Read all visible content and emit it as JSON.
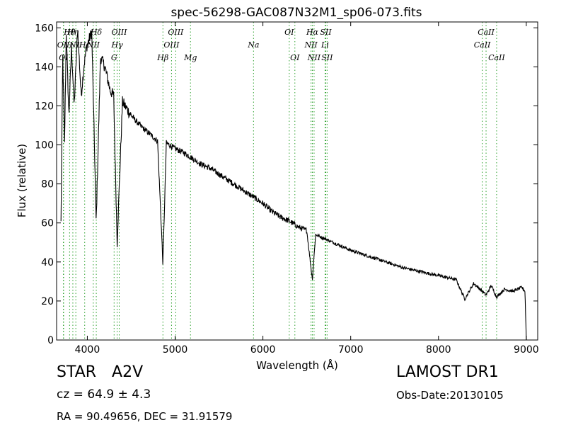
{
  "chart_data": {
    "type": "line",
    "title": "spec-56298-GAC087N32M1_sp06-073.fits",
    "xlabel": "Wavelength (Å)",
    "ylabel": "Flux (relative)",
    "xlim": [
      3650,
      9130
    ],
    "ylim": [
      0,
      163
    ],
    "xticks": [
      4000,
      5000,
      6000,
      7000,
      8000,
      9000
    ],
    "yticks": [
      0,
      20,
      40,
      60,
      80,
      100,
      120,
      140,
      160
    ],
    "grid": false,
    "line_color": "#000000",
    "marker_color": "#2ca02c",
    "continuum": [
      [
        3700,
        60
      ],
      [
        3720,
        145
      ],
      [
        3740,
        100
      ],
      [
        3760,
        158
      ],
      [
        3790,
        115
      ],
      [
        3820,
        150
      ],
      [
        3850,
        120
      ],
      [
        3890,
        160
      ],
      [
        3930,
        125
      ],
      [
        3960,
        140
      ],
      [
        3990,
        150
      ],
      [
        4050,
        158
      ],
      [
        4101,
        60
      ],
      [
        4150,
        145
      ],
      [
        4200,
        140
      ],
      [
        4260,
        128
      ],
      [
        4300,
        125
      ],
      [
        4340,
        50
      ],
      [
        4400,
        122
      ],
      [
        4500,
        115
      ],
      [
        4600,
        110
      ],
      [
        4700,
        106
      ],
      [
        4800,
        102
      ],
      [
        4861,
        39
      ],
      [
        4900,
        101
      ],
      [
        5000,
        98
      ],
      [
        5100,
        96
      ],
      [
        5200,
        93
      ],
      [
        5300,
        90
      ],
      [
        5400,
        88
      ],
      [
        5500,
        85
      ],
      [
        5600,
        82
      ],
      [
        5700,
        79
      ],
      [
        5800,
        76
      ],
      [
        5900,
        73
      ],
      [
        6000,
        70
      ],
      [
        6100,
        66
      ],
      [
        6200,
        63
      ],
      [
        6300,
        61
      ],
      [
        6400,
        58
      ],
      [
        6500,
        56
      ],
      [
        6563,
        31
      ],
      [
        6600,
        54
      ],
      [
        6700,
        52
      ],
      [
        6800,
        50
      ],
      [
        6900,
        48
      ],
      [
        7000,
        46
      ],
      [
        7200,
        43
      ],
      [
        7400,
        40
      ],
      [
        7600,
        37
      ],
      [
        7800,
        35
      ],
      [
        8000,
        33
      ],
      [
        8200,
        31
      ],
      [
        8300,
        21
      ],
      [
        8400,
        29
      ],
      [
        8498,
        25
      ],
      [
        8542,
        23
      ],
      [
        8600,
        28
      ],
      [
        8662,
        22
      ],
      [
        8750,
        26
      ],
      [
        8850,
        25
      ],
      [
        8950,
        27
      ],
      [
        8985,
        25
      ],
      [
        9000,
        0
      ]
    ],
    "lines": [
      {
        "label": "OII",
        "wavelength": 3727,
        "row": 1
      },
      {
        "label": "OI",
        "wavelength": 3730,
        "row": 2
      },
      {
        "label": "Hθ",
        "wavelength": 3798,
        "row": 0
      },
      {
        "label": "Hη",
        "wavelength": 3835,
        "row": 0
      },
      {
        "label": "NII",
        "wavelength": 3869,
        "row": 1
      },
      {
        "label": "Hε",
        "wavelength": 3970,
        "row": 1
      },
      {
        "label": "Hδ",
        "wavelength": 4102,
        "row": 0
      },
      {
        "label": "NII",
        "wavelength": 4068,
        "row": 1
      },
      {
        "label": "OIII",
        "wavelength": 4363,
        "row": 0
      },
      {
        "label": "Hγ",
        "wavelength": 4340,
        "row": 1
      },
      {
        "label": "G",
        "wavelength": 4305,
        "row": 2
      },
      {
        "label": "OIII",
        "wavelength": 5007,
        "row": 0
      },
      {
        "label": "OIII",
        "wavelength": 4959,
        "row": 1
      },
      {
        "label": "Hβ",
        "wavelength": 4861,
        "row": 2
      },
      {
        "label": "Mg",
        "wavelength": 5175,
        "row": 2
      },
      {
        "label": "Na",
        "wavelength": 5893,
        "row": 1
      },
      {
        "label": "OI",
        "wavelength": 6300,
        "row": 0
      },
      {
        "label": "OI",
        "wavelength": 6364,
        "row": 2
      },
      {
        "label": "Hα",
        "wavelength": 6563,
        "row": 0
      },
      {
        "label": "SII",
        "wavelength": 6716,
        "row": 0
      },
      {
        "label": "NII",
        "wavelength": 6548,
        "row": 1
      },
      {
        "label": "Li",
        "wavelength": 6708,
        "row": 1
      },
      {
        "label": "NII",
        "wavelength": 6583,
        "row": 2
      },
      {
        "label": "SII",
        "wavelength": 6731,
        "row": 2
      },
      {
        "label": "CaII",
        "wavelength": 8542,
        "row": 0
      },
      {
        "label": "CaII",
        "wavelength": 8498,
        "row": 1
      },
      {
        "label": "CaII",
        "wavelength": 8662,
        "row": 2
      }
    ]
  },
  "info": {
    "class": "STAR",
    "subclass": "A2V",
    "redshift": "cz = 64.9 ± 4.3",
    "coords": "RA = 90.49656, DEC = 31.91579",
    "survey": "LAMOST DR1",
    "obs_date": "Obs-Date:20130105"
  }
}
